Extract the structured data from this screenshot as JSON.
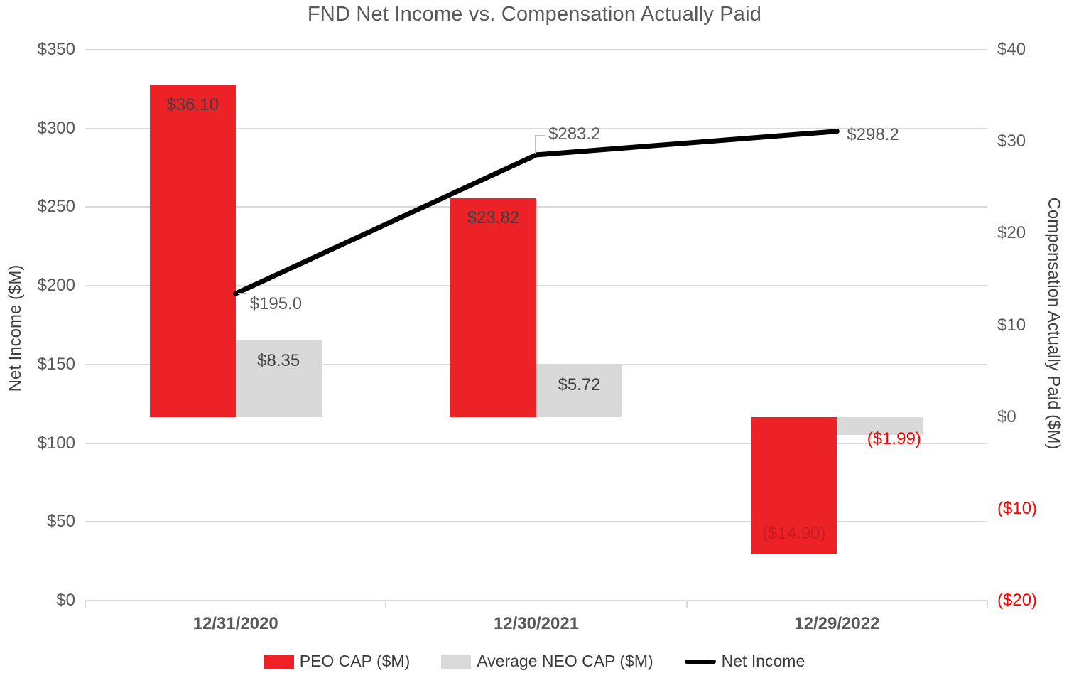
{
  "title": "FND Net Income vs. Compensation Actually Paid",
  "colors": {
    "peo_bar": "#EC2227",
    "neo_bar": "#D9D9D9",
    "line": "#000000",
    "gridline": "#D9D9D9",
    "axis_text": "#595959",
    "bar_label_text": "#3F3F3F",
    "peo_negative_label": "#C41B21",
    "negative_text": "#FF0000"
  },
  "chart_data": {
    "type": "bar",
    "subtype": "bar-line-combo",
    "title": "FND Net Income vs. Compensation Actually Paid",
    "categories": [
      "12/31/2020",
      "12/30/2021",
      "12/29/2022"
    ],
    "series": [
      {
        "name": "PEO CAP ($M)",
        "type": "bar",
        "axis": "right",
        "values": [
          36.1,
          23.82,
          -14.9
        ],
        "labels": [
          "$36.10",
          "$23.82",
          "($14.90)"
        ]
      },
      {
        "name": "Average NEO CAP ($M)",
        "type": "bar",
        "axis": "right",
        "values": [
          8.35,
          5.72,
          -1.99
        ],
        "labels": [
          "$8.35",
          "$5.72",
          "($1.99)"
        ]
      },
      {
        "name": "Net Income",
        "type": "line",
        "axis": "left",
        "values": [
          195.0,
          283.2,
          298.2
        ],
        "labels": [
          "$195.0",
          "$283.2",
          "$298.2"
        ]
      }
    ],
    "left_axis": {
      "label": "Net Income ($M)",
      "min": 0,
      "max": 350,
      "step": 50,
      "ticks": [
        "$350",
        "$300",
        "$250",
        "$200",
        "$150",
        "$100",
        "$50",
        "$0"
      ]
    },
    "right_axis": {
      "label": "Compensation Actually Paid ($M)",
      "min": -20,
      "max": 40,
      "step": 10,
      "ticks": [
        "$40",
        "$30",
        "$20",
        "$10",
        "$0",
        "($10)",
        "($20)"
      ]
    },
    "legend": [
      "PEO CAP ($M)",
      "Average NEO CAP ($M)",
      "Net Income"
    ],
    "grid": "horizontal-only",
    "legend_position": "bottom"
  }
}
